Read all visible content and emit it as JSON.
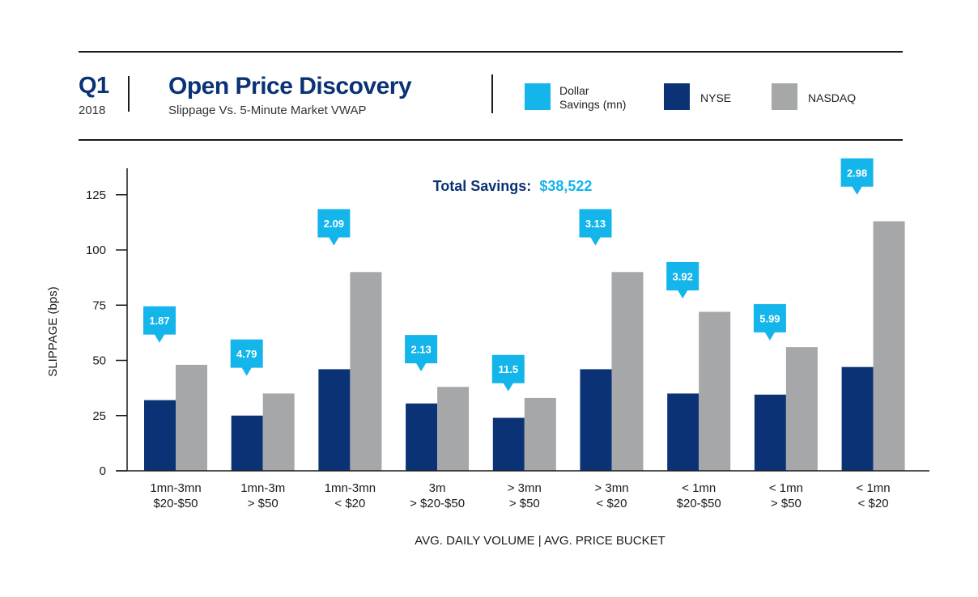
{
  "header": {
    "quarter": "Q1",
    "year": "2018",
    "title": "Open Price Discovery",
    "subtitle": "Slippage Vs. 5-Minute Market VWAP"
  },
  "legend": [
    {
      "key": "dollar",
      "label_line1": "Dollar",
      "label_line2": "Savings (mn)",
      "color": "#13b5ea"
    },
    {
      "key": "nyse",
      "label": "NYSE",
      "color": "#0b3275"
    },
    {
      "key": "nasdaq",
      "label": "NASDAQ",
      "color": "#a5a7a8"
    }
  ],
  "total_savings": {
    "label": "Total Savings:",
    "value": "$38,522"
  },
  "colors": {
    "nyse": "#0b3275",
    "nasdaq": "#a5a7a8",
    "callout": "#13b5ea",
    "navy": "#0b3275"
  },
  "chart_data": {
    "type": "bar",
    "ylabel": "SLIPPAGE (bps)",
    "xlabel": "AVG. DAILY VOLUME | AVG. PRICE BUCKET",
    "ylim": [
      0,
      135
    ],
    "yticks": [
      0,
      25,
      50,
      75,
      100,
      125
    ],
    "categories": [
      [
        "1mn-3mn",
        "$20-$50"
      ],
      [
        "1mn-3m",
        "> $50"
      ],
      [
        "1mn-3mn",
        "< $20"
      ],
      [
        "3m",
        "> $20-$50"
      ],
      [
        "> 3mn",
        "> $50"
      ],
      [
        "> 3mn",
        "< $20"
      ],
      [
        "< 1mn",
        "$20-$50"
      ],
      [
        "< 1mn",
        "> $50"
      ],
      [
        "< 1mn",
        "< $20"
      ]
    ],
    "series": [
      {
        "name": "NYSE",
        "values": [
          32,
          25,
          46,
          30.5,
          24,
          46,
          35,
          34.5,
          47
        ]
      },
      {
        "name": "NASDAQ",
        "values": [
          48,
          35,
          90,
          38,
          33,
          90,
          72,
          56,
          113
        ]
      }
    ],
    "dollar_savings": [
      "1.87",
      "4.79",
      "2.09",
      "2.13",
      "11.5",
      "3.13",
      "3.92",
      "5.99",
      "2.98"
    ],
    "callout_levels": [
      58,
      43,
      102,
      45,
      36,
      102,
      78,
      59,
      125
    ]
  }
}
